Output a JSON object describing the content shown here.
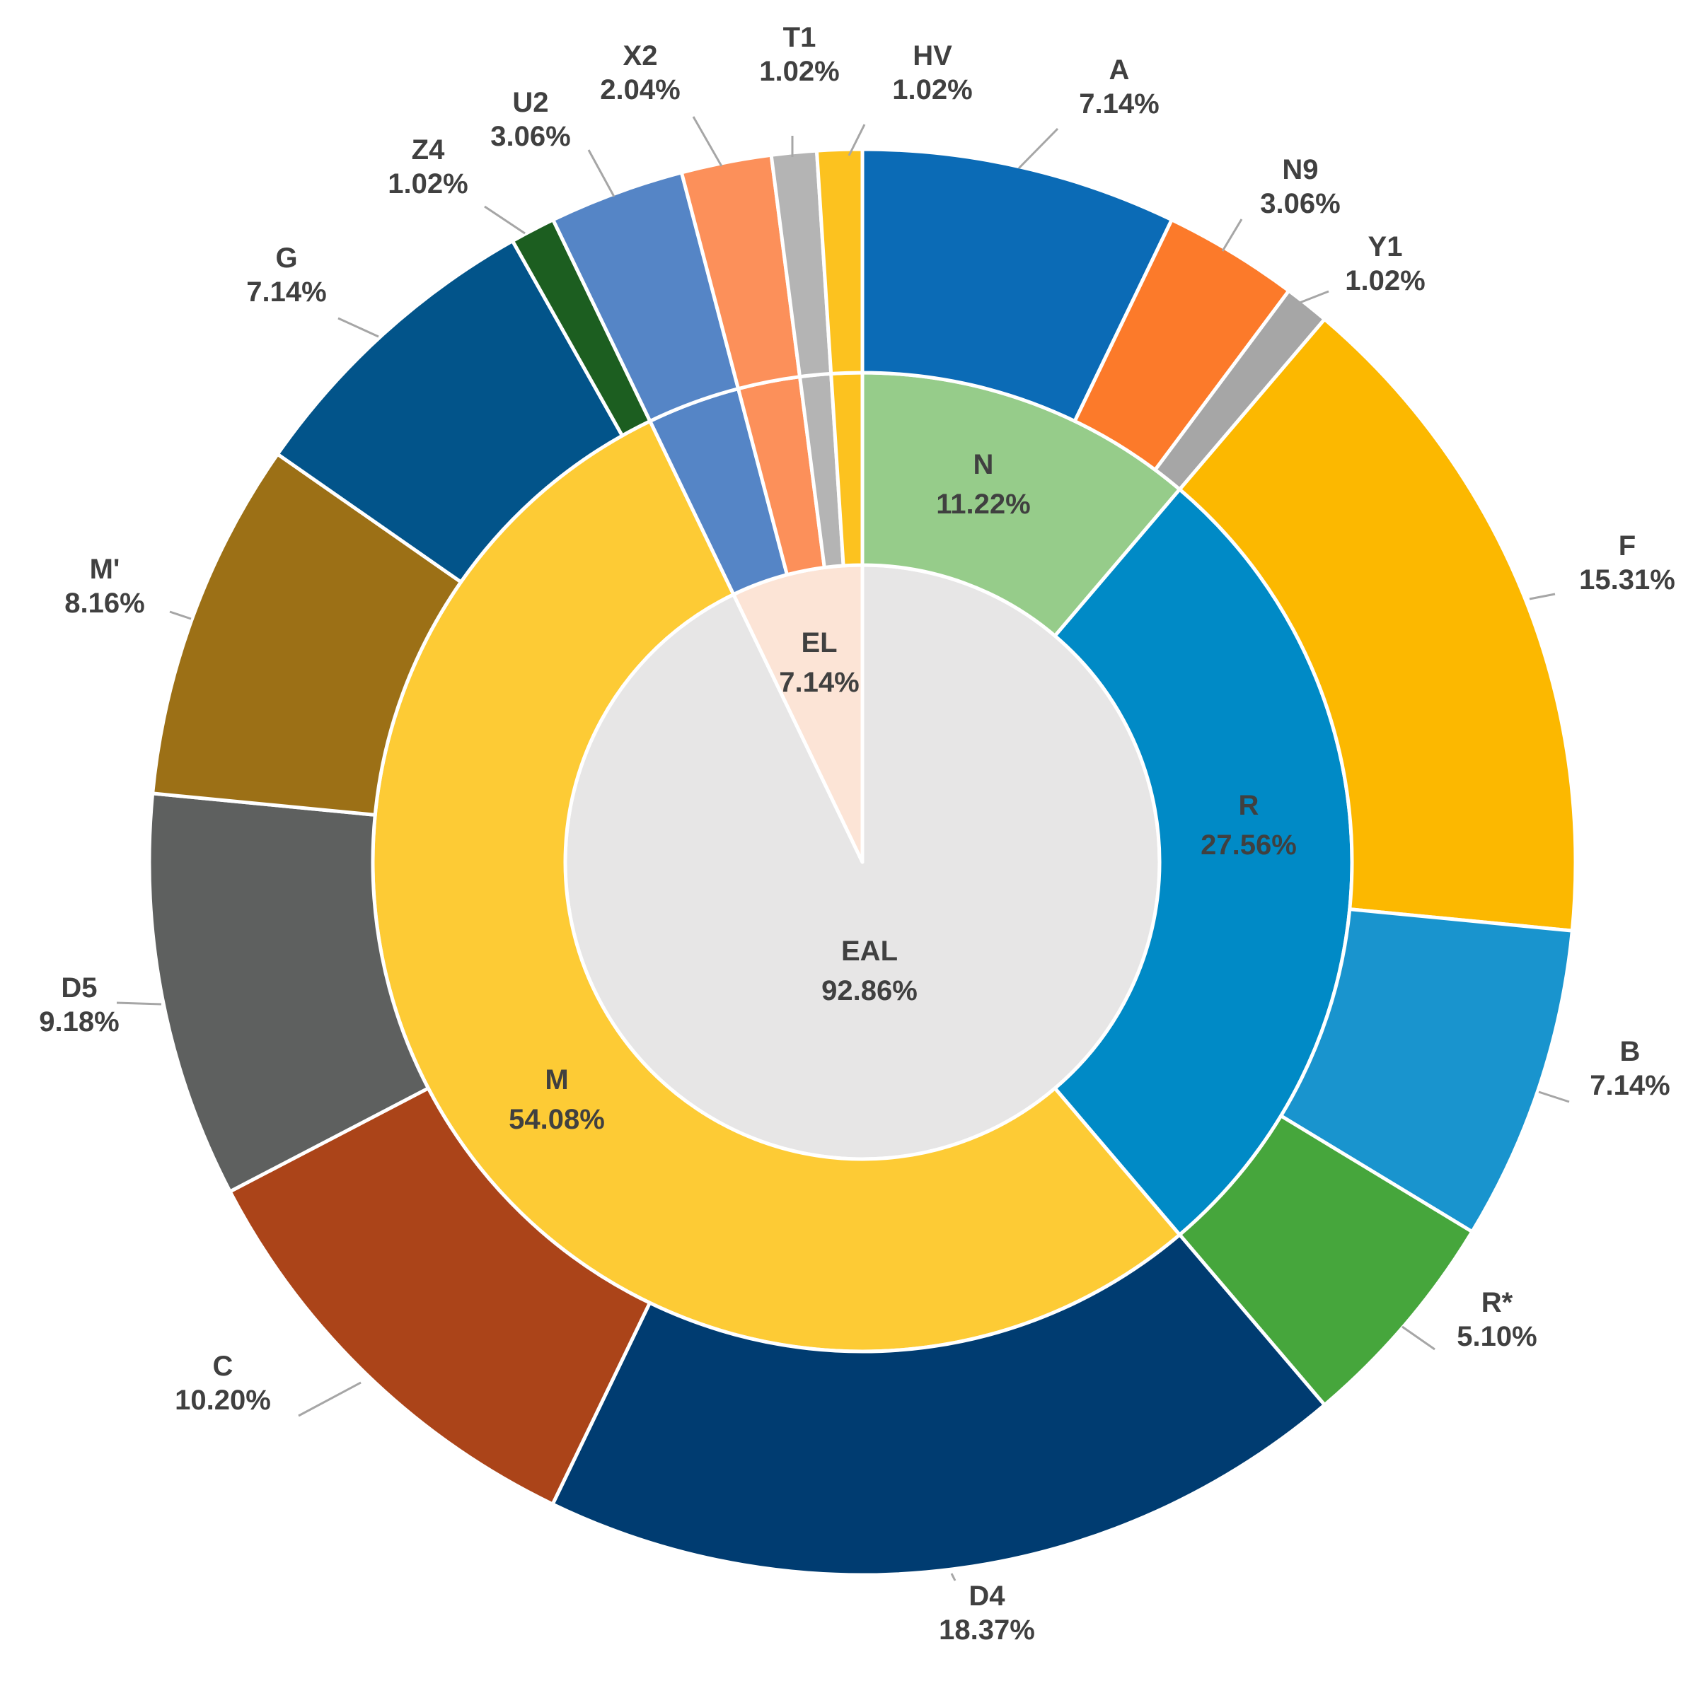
{
  "chart_data": {
    "type": "pie",
    "subtype": "multi-level donut (sunburst)",
    "title": "",
    "legend": "none",
    "rings": [
      {
        "level": "center",
        "slices": [
          {
            "label": "EAL",
            "value": 92.86,
            "value_text": "92.86%",
            "color": "#E7E6E6"
          },
          {
            "label": "EL",
            "value": 7.14,
            "value_text": "7.14%",
            "color": "#FCE4D6"
          }
        ]
      },
      {
        "level": "middle",
        "slices": [
          {
            "label": "N",
            "value": 11.22,
            "value_text": "11.22%",
            "color": "#96CC8A"
          },
          {
            "label": "R",
            "value": 27.56,
            "value_text": "27.56%",
            "color": "#008AC6"
          },
          {
            "label": "M",
            "value": 54.08,
            "value_text": "54.08%",
            "color": "#FDCB35"
          },
          {
            "label": "",
            "value": 3.06,
            "value_text": "",
            "color": "#5585C6"
          },
          {
            "label": "",
            "value": 2.04,
            "value_text": "",
            "color": "#FC905A"
          },
          {
            "label": "",
            "value": 1.02,
            "value_text": "",
            "color": "#B4B4B4"
          },
          {
            "label": "",
            "value": 1.02,
            "value_text": "",
            "color": "#FCC21F"
          }
        ]
      },
      {
        "level": "outer",
        "slices": [
          {
            "label": "A",
            "value": 7.14,
            "value_text": "7.14%",
            "color": "#0B6BB6"
          },
          {
            "label": "N9",
            "value": 3.06,
            "value_text": "3.06%",
            "color": "#FC7A2A"
          },
          {
            "label": "Y1",
            "value": 1.02,
            "value_text": "1.02%",
            "color": "#A6A6A6"
          },
          {
            "label": "F",
            "value": 15.31,
            "value_text": "15.31%",
            "color": "#FCB800"
          },
          {
            "label": "B",
            "value": 7.14,
            "value_text": "7.14%",
            "color": "#1994CE"
          },
          {
            "label": "R*",
            "value": 5.1,
            "value_text": "5.10%",
            "color": "#46A63C"
          },
          {
            "label": "D4",
            "value": 18.37,
            "value_text": "18.37%",
            "color": "#003C71"
          },
          {
            "label": "C",
            "value": 10.2,
            "value_text": "10.20%",
            "color": "#AB4419"
          },
          {
            "label": "D5",
            "value": 9.18,
            "value_text": "9.18%",
            "color": "#5E605F"
          },
          {
            "label": "M'",
            "value": 8.16,
            "value_text": "8.16%",
            "color": "#9C7016"
          },
          {
            "label": "G",
            "value": 7.14,
            "value_text": "7.14%",
            "color": "#02548A"
          },
          {
            "label": "Z4",
            "value": 1.02,
            "value_text": "1.02%",
            "color": "#1C5E20"
          },
          {
            "label": "U2",
            "value": 3.06,
            "value_text": "3.06%",
            "color": "#5585C6"
          },
          {
            "label": "X2",
            "value": 2.04,
            "value_text": "2.04%",
            "color": "#FC905A"
          },
          {
            "label": "T1",
            "value": 1.02,
            "value_text": "1.02%",
            "color": "#B4B4B4"
          },
          {
            "label": "HV",
            "value": 1.02,
            "value_text": "1.02%",
            "color": "#FCC21F"
          }
        ]
      }
    ]
  }
}
